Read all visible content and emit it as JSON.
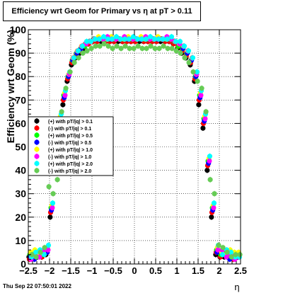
{
  "chart_data": {
    "type": "scatter",
    "title": "Efficiency wrt Geom for Primary vs    η  at pT > 0.11",
    "xlabel": "η",
    "ylabel": "Efficiency wrt Geom (%)",
    "xlim": [
      -2.5,
      2.5
    ],
    "ylim": [
      0,
      100
    ],
    "xticks": [
      -2.5,
      -2,
      -1.5,
      -1,
      -0.5,
      0,
      0.5,
      1,
      1.5,
      2,
      2.5
    ],
    "xtick_labels": [
      "−2.5",
      "−2",
      "−1.5",
      "−1",
      "−0.5",
      "0",
      "0.5",
      "1",
      "1.5",
      "2",
      "2.5"
    ],
    "yticks": [
      0,
      10,
      20,
      30,
      40,
      50,
      60,
      70,
      80,
      90,
      100
    ],
    "ytick_labels": [
      "0",
      "10",
      "20",
      "30",
      "40",
      "50",
      "60",
      "70",
      "80",
      "90",
      "100"
    ],
    "grid": true,
    "legend_position": "middle-left",
    "x": [
      -2.45,
      -2.35,
      -2.25,
      -2.15,
      -2.05,
      -1.95,
      -1.85,
      -1.75,
      -1.65,
      -1.55,
      -1.45,
      -1.35,
      -1.25,
      -1.15,
      -1.05,
      -0.95,
      -0.85,
      -0.75,
      -0.65,
      -0.55,
      -0.45,
      -0.35,
      -0.25,
      -0.15,
      -0.05,
      0.05,
      0.15,
      0.25,
      0.35,
      0.45,
      0.55,
      0.65,
      0.75,
      0.85,
      0.95,
      1.05,
      1.15,
      1.25,
      1.35,
      1.45,
      1.55,
      1.65,
      1.75,
      1.85,
      1.95,
      2.05,
      2.15,
      2.25,
      2.35,
      2.45
    ],
    "series": [
      {
        "name": "(+) with pT/|q| > 0.1",
        "color": "#000000",
        "values": [
          3,
          4,
          3,
          3,
          4,
          20,
          40,
          58,
          68,
          78,
          85,
          88,
          90,
          92,
          94,
          95,
          95,
          95,
          95,
          95,
          95,
          95,
          95,
          95,
          95,
          95,
          95,
          95,
          95,
          95,
          95,
          95,
          95,
          95,
          94,
          92,
          90,
          88,
          85,
          78,
          68,
          58,
          40,
          20,
          4,
          3,
          3,
          3,
          3,
          4
        ]
      },
      {
        "name": "(-) with pT/|q| > 0.1",
        "color": "#ff0000",
        "values": [
          2,
          3,
          4,
          3,
          5,
          22,
          42,
          60,
          70,
          79,
          86,
          89,
          91,
          93,
          94,
          95,
          95,
          96,
          95,
          95,
          95,
          96,
          95,
          95,
          95,
          95,
          96,
          95,
          95,
          95,
          95,
          96,
          95,
          95,
          94,
          93,
          91,
          89,
          86,
          79,
          70,
          60,
          42,
          22,
          5,
          3,
          4,
          3,
          2,
          3
        ]
      },
      {
        "name": "(+) with pT/|q| > 0.5",
        "color": "#00ff00",
        "values": [
          4,
          3,
          5,
          4,
          6,
          24,
          44,
          62,
          72,
          80,
          87,
          90,
          92,
          93,
          95,
          96,
          96,
          96,
          96,
          96,
          96,
          96,
          96,
          96,
          96,
          96,
          96,
          96,
          96,
          96,
          96,
          96,
          96,
          96,
          95,
          93,
          92,
          90,
          87,
          80,
          72,
          62,
          44,
          24,
          6,
          4,
          5,
          3,
          4,
          4
        ]
      },
      {
        "name": "(-) with pT/|q| > 0.5",
        "color": "#0000ff",
        "values": [
          3,
          2,
          4,
          5,
          5,
          23,
          43,
          61,
          71,
          80,
          87,
          90,
          92,
          94,
          95,
          96,
          96,
          96,
          96,
          96,
          96,
          96,
          96,
          96,
          96,
          96,
          96,
          96,
          96,
          96,
          96,
          96,
          96,
          96,
          95,
          94,
          92,
          90,
          87,
          80,
          71,
          61,
          43,
          23,
          5,
          5,
          4,
          2,
          3,
          3
        ]
      },
      {
        "name": "(+) with pT/|q| > 1.0",
        "color": "#ffff00",
        "values": [
          5,
          6,
          4,
          5,
          7,
          25,
          45,
          63,
          73,
          81,
          88,
          91,
          93,
          94,
          95,
          96,
          97,
          96,
          96,
          97,
          96,
          96,
          96,
          97,
          96,
          96,
          97,
          96,
          96,
          96,
          97,
          96,
          96,
          96,
          95,
          94,
          93,
          91,
          88,
          81,
          73,
          63,
          45,
          25,
          7,
          5,
          4,
          6,
          5,
          5
        ]
      },
      {
        "name": "(-) with pT/|q| > 1.0",
        "color": "#ff00ff",
        "values": [
          2,
          4,
          3,
          6,
          6,
          24,
          44,
          62,
          72,
          81,
          88,
          91,
          93,
          94,
          95,
          96,
          96,
          96,
          97,
          96,
          96,
          96,
          97,
          96,
          96,
          96,
          96,
          97,
          96,
          96,
          96,
          96,
          97,
          96,
          95,
          94,
          93,
          91,
          88,
          81,
          72,
          62,
          44,
          24,
          6,
          6,
          3,
          4,
          2,
          3
        ]
      },
      {
        "name": "(+) with pT/|q| > 2.0",
        "color": "#00ffff",
        "values": [
          3,
          5,
          6,
          4,
          8,
          26,
          46,
          64,
          74,
          82,
          88,
          91,
          93,
          95,
          95,
          96,
          96,
          97,
          96,
          96,
          97,
          96,
          96,
          96,
          97,
          96,
          96,
          96,
          97,
          96,
          96,
          96,
          96,
          97,
          95,
          95,
          93,
          91,
          88,
          82,
          74,
          64,
          46,
          26,
          8,
          4,
          6,
          5,
          3,
          3
        ]
      },
      {
        "name": "(-) with pT/|q| > 2.0",
        "color": "#66cc55",
        "values": [
          4,
          3,
          5,
          7,
          33,
          30,
          36,
          65,
          75,
          82,
          86,
          88,
          90,
          91,
          92,
          93,
          93,
          94,
          93,
          92,
          93,
          92,
          93,
          92,
          92,
          93,
          92,
          92,
          93,
          92,
          92,
          93,
          92,
          92,
          91,
          90,
          88,
          86,
          82,
          78,
          75,
          65,
          36,
          30,
          8,
          7,
          5,
          3,
          4,
          4
        ]
      }
    ]
  },
  "footer": "Thu Sep 22 07:50:01 2022"
}
